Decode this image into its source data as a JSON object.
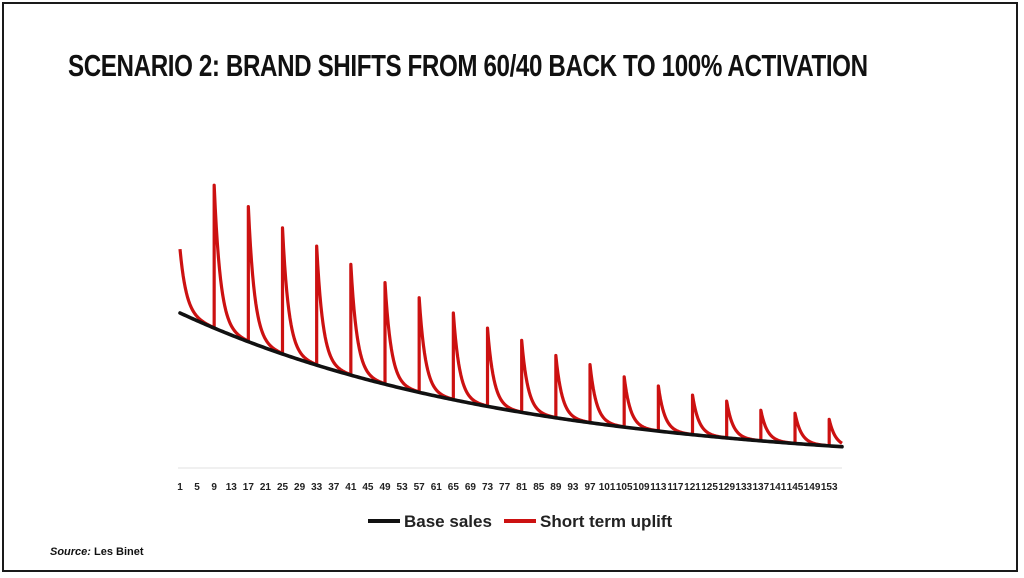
{
  "title": "SCENARIO 2: BRAND SHIFTS FROM 60/40 BACK TO 100% ACTIVATION",
  "source": {
    "prefix": "Source:",
    "text": "Les Binet"
  },
  "colors": {
    "base": "#111111",
    "uplift": "#cc1111"
  },
  "chart_data": {
    "type": "line",
    "x_start": 1,
    "x_end": 156,
    "tick_labels": [
      "1",
      "5",
      "9",
      "13",
      "17",
      "21",
      "25",
      "29",
      "33",
      "37",
      "41",
      "45",
      "49",
      "53",
      "57",
      "61",
      "65",
      "69",
      "73",
      "77",
      "81",
      "85",
      "89",
      "93",
      "97",
      "101",
      "105",
      "109",
      "113",
      "117",
      "121",
      "125",
      "129",
      "133",
      "137",
      "141",
      "145",
      "149",
      "153"
    ],
    "ylim": [
      0,
      100
    ],
    "grid": false,
    "legend_position": "bottom",
    "series": [
      {
        "name": "Base sales",
        "color": "#111111",
        "model": "exponential-decay",
        "start_value": 51,
        "end_value": 7
      },
      {
        "name": "Short term uplift",
        "color": "#cc1111",
        "model": "base-plus-decaying-spikes",
        "spike_every": 8,
        "first_spike_x": 1,
        "spike_decay": 0.68,
        "spikes": [
          {
            "x": 1,
            "value": 72
          },
          {
            "x": 9,
            "value": 93
          },
          {
            "x": 17,
            "value": 86
          },
          {
            "x": 25,
            "value": 79
          },
          {
            "x": 33,
            "value": 73
          },
          {
            "x": 41,
            "value": 67
          },
          {
            "x": 49,
            "value": 61
          },
          {
            "x": 57,
            "value": 56
          },
          {
            "x": 65,
            "value": 51
          },
          {
            "x": 73,
            "value": 46
          },
          {
            "x": 81,
            "value": 42
          },
          {
            "x": 89,
            "value": 37
          },
          {
            "x": 97,
            "value": 34
          },
          {
            "x": 105,
            "value": 30
          },
          {
            "x": 113,
            "value": 27
          },
          {
            "x": 121,
            "value": 24
          },
          {
            "x": 129,
            "value": 22
          },
          {
            "x": 137,
            "value": 19
          },
          {
            "x": 145,
            "value": 18
          },
          {
            "x": 153,
            "value": 16
          }
        ]
      }
    ]
  }
}
